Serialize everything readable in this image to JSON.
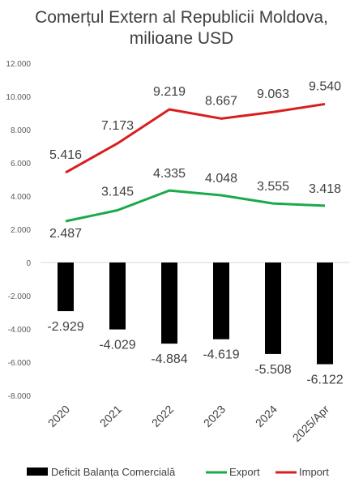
{
  "chart_data": {
    "type": "bar+line",
    "title_line1": "Comerțul Extern al Republicii Moldova,",
    "title_line2": "milioane USD",
    "categories": [
      "2020",
      "2021",
      "2022",
      "2023",
      "2024",
      "2025/Apr"
    ],
    "yticks": [
      "12.000",
      "10.000",
      "8.000",
      "6.000",
      "4.000",
      "2.000",
      "0",
      "-2.000",
      "-4.000",
      "-6.000",
      "-8.000"
    ],
    "ylim": [
      -8000,
      12000
    ],
    "series": [
      {
        "name": "Deficit Balanța Comercială",
        "kind": "bar",
        "color": "#000000",
        "values": [
          -2929,
          -4029,
          -4884,
          -4619,
          -5508,
          -6122
        ],
        "labels": [
          "-2.929",
          "-4.029",
          "-4.884",
          "-4.619",
          "-5.508",
          "-6.122"
        ]
      },
      {
        "name": "Export",
        "kind": "line",
        "color": "#1aaa4a",
        "values": [
          2487,
          3145,
          4335,
          4048,
          3555,
          3418
        ],
        "labels": [
          "2.487",
          "3.145",
          "4.335",
          "4.048",
          "3.555",
          "3.418"
        ]
      },
      {
        "name": "Import",
        "kind": "line",
        "color": "#d91e1e",
        "values": [
          5416,
          7173,
          9219,
          8667,
          9063,
          9540
        ],
        "labels": [
          "5.416",
          "7.173",
          "9.219",
          "8.667",
          "9.063",
          "9.540"
        ]
      }
    ],
    "legend_position": "bottom",
    "grid": false
  }
}
